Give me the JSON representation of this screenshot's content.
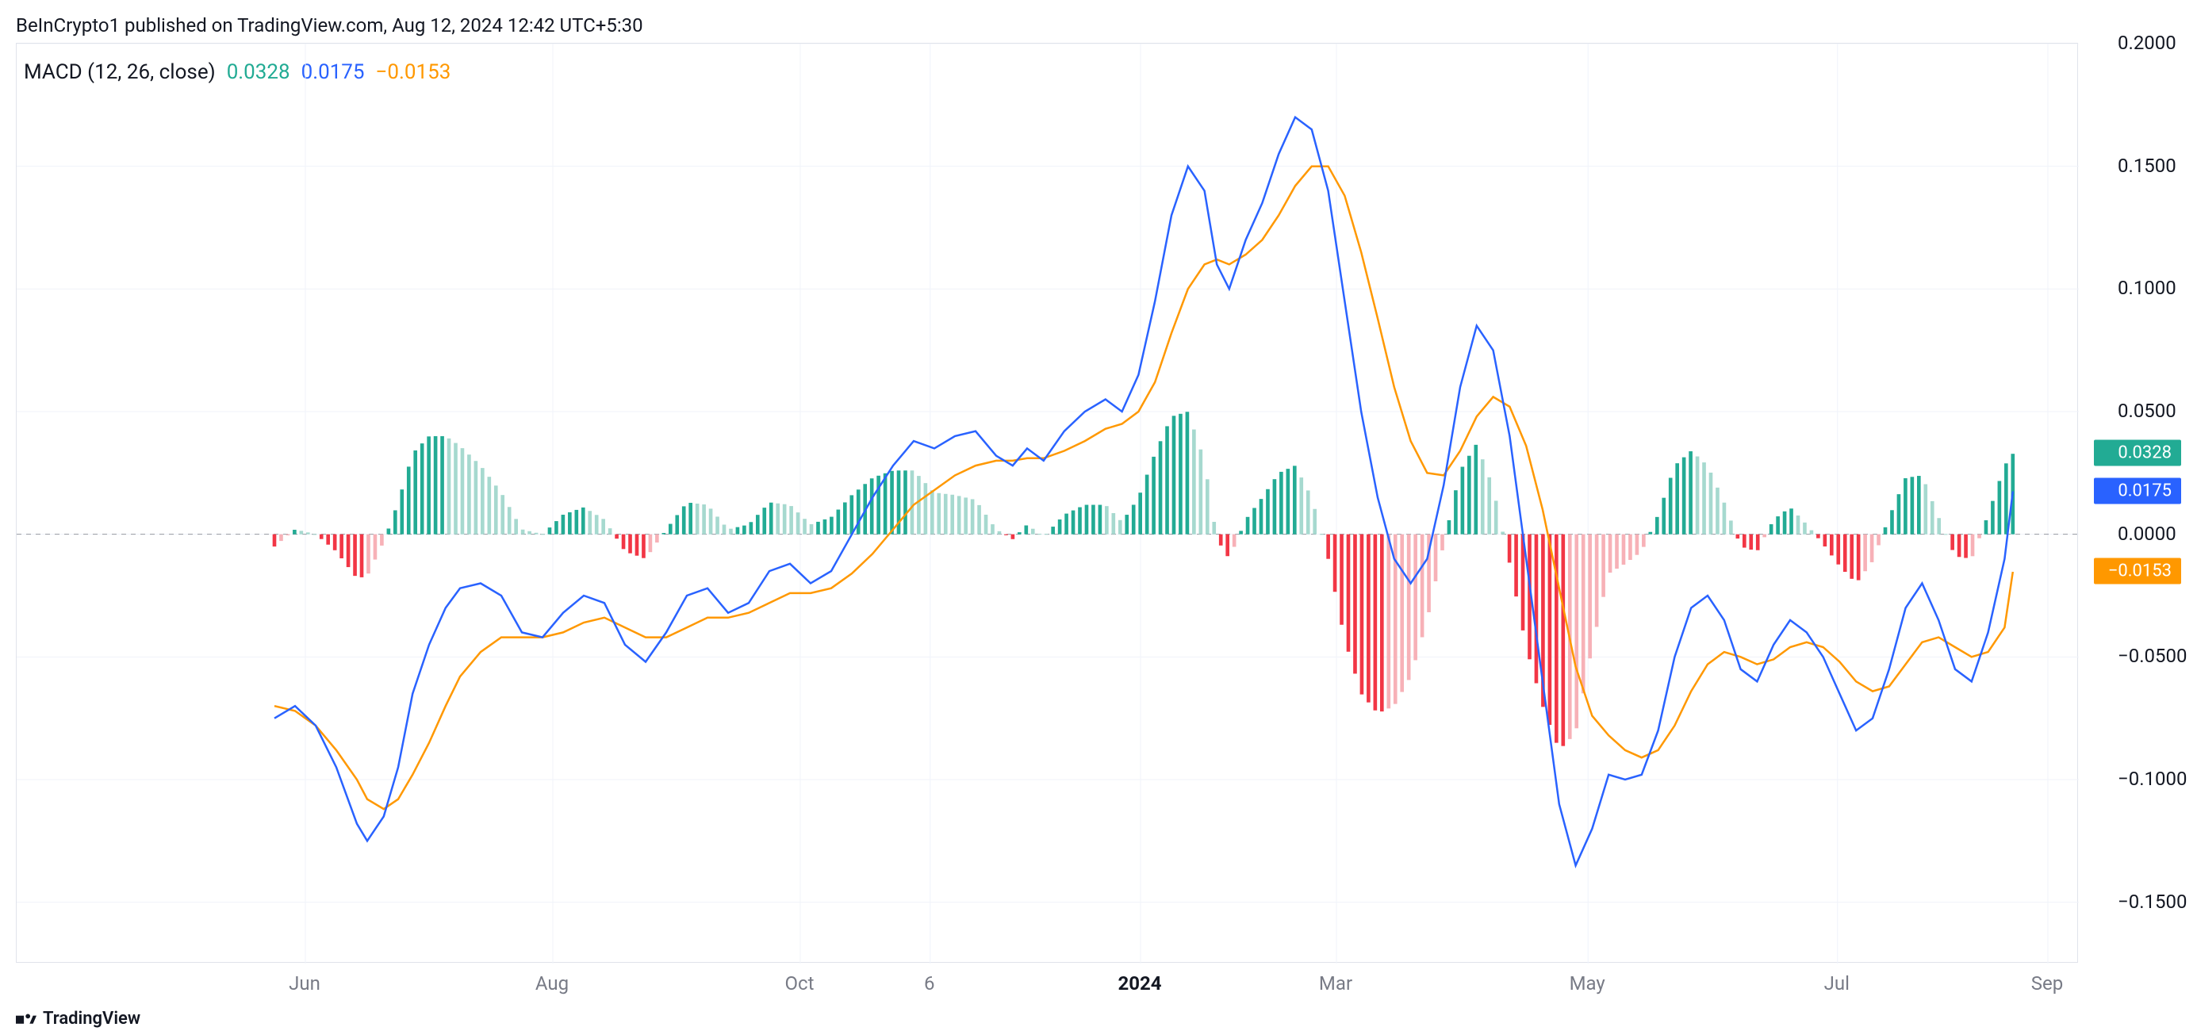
{
  "attribution": "BeInCrypto1 published on TradingView.com, Aug 12, 2024 12:42 UTC+5:30",
  "watermark": "TradingView",
  "legend": {
    "name": "MACD (12, 26, close)",
    "val_hist": "0.0328",
    "val_macd": "0.0175",
    "val_signal": "−0.0153"
  },
  "chart": {
    "type": "macd",
    "ylim": [
      -0.175,
      0.2
    ],
    "yticks": [
      -0.15,
      -0.1,
      -0.05,
      0.0,
      0.05,
      0.1,
      0.15,
      0.2
    ],
    "ytick_labels": [
      "−0.1500",
      "−0.1000",
      "−0.0500",
      "0.0000",
      "0.0500",
      "0.1000",
      "0.1500",
      "0.2000"
    ],
    "xtick_positions": [
      0.14,
      0.26,
      0.38,
      0.443,
      0.545,
      0.64,
      0.762,
      0.883,
      0.985
    ],
    "xtick_labels": [
      "Jun",
      "Aug",
      "Oct",
      "6",
      "2024",
      "Mar",
      "May",
      "Jul",
      "Sep"
    ],
    "xtick_bold_index": 4,
    "colors": {
      "macd_line": "#2962ff",
      "signal_line": "#ff9800",
      "hist_pos_strong": "#22ab94",
      "hist_pos_weak": "#a6d9cf",
      "hist_neg_strong": "#f23645",
      "hist_neg_weak": "#f7b1b7",
      "grid": "#f0f3fa",
      "zero": "#9598a1",
      "bg": "#ffffff",
      "text": "#131722"
    },
    "badges": [
      {
        "value": "0.0328",
        "y": 0.0328,
        "bg": "#22ab94"
      },
      {
        "value": "0.0175",
        "y": 0.0175,
        "bg": "#2962ff"
      },
      {
        "value": "−0.0153",
        "y": -0.0153,
        "bg": "#ff9800"
      }
    ],
    "macd_points": [
      {
        "x": 0.125,
        "y": -0.075
      },
      {
        "x": 0.135,
        "y": -0.07
      },
      {
        "x": 0.145,
        "y": -0.078
      },
      {
        "x": 0.155,
        "y": -0.095
      },
      {
        "x": 0.165,
        "y": -0.118
      },
      {
        "x": 0.17,
        "y": -0.125
      },
      {
        "x": 0.178,
        "y": -0.115
      },
      {
        "x": 0.185,
        "y": -0.095
      },
      {
        "x": 0.192,
        "y": -0.065
      },
      {
        "x": 0.2,
        "y": -0.045
      },
      {
        "x": 0.208,
        "y": -0.03
      },
      {
        "x": 0.215,
        "y": -0.022
      },
      {
        "x": 0.225,
        "y": -0.02
      },
      {
        "x": 0.235,
        "y": -0.025
      },
      {
        "x": 0.245,
        "y": -0.04
      },
      {
        "x": 0.255,
        "y": -0.042
      },
      {
        "x": 0.265,
        "y": -0.032
      },
      {
        "x": 0.275,
        "y": -0.025
      },
      {
        "x": 0.285,
        "y": -0.028
      },
      {
        "x": 0.295,
        "y": -0.045
      },
      {
        "x": 0.305,
        "y": -0.052
      },
      {
        "x": 0.315,
        "y": -0.04
      },
      {
        "x": 0.325,
        "y": -0.025
      },
      {
        "x": 0.335,
        "y": -0.022
      },
      {
        "x": 0.345,
        "y": -0.032
      },
      {
        "x": 0.355,
        "y": -0.028
      },
      {
        "x": 0.365,
        "y": -0.015
      },
      {
        "x": 0.375,
        "y": -0.012
      },
      {
        "x": 0.385,
        "y": -0.02
      },
      {
        "x": 0.395,
        "y": -0.015
      },
      {
        "x": 0.405,
        "y": 0.0
      },
      {
        "x": 0.415,
        "y": 0.015
      },
      {
        "x": 0.425,
        "y": 0.028
      },
      {
        "x": 0.435,
        "y": 0.038
      },
      {
        "x": 0.445,
        "y": 0.035
      },
      {
        "x": 0.455,
        "y": 0.04
      },
      {
        "x": 0.465,
        "y": 0.042
      },
      {
        "x": 0.475,
        "y": 0.032
      },
      {
        "x": 0.483,
        "y": 0.028
      },
      {
        "x": 0.49,
        "y": 0.035
      },
      {
        "x": 0.498,
        "y": 0.03
      },
      {
        "x": 0.508,
        "y": 0.042
      },
      {
        "x": 0.518,
        "y": 0.05
      },
      {
        "x": 0.528,
        "y": 0.055
      },
      {
        "x": 0.536,
        "y": 0.05
      },
      {
        "x": 0.544,
        "y": 0.065
      },
      {
        "x": 0.552,
        "y": 0.095
      },
      {
        "x": 0.56,
        "y": 0.13
      },
      {
        "x": 0.568,
        "y": 0.15
      },
      {
        "x": 0.576,
        "y": 0.14
      },
      {
        "x": 0.582,
        "y": 0.11
      },
      {
        "x": 0.588,
        "y": 0.1
      },
      {
        "x": 0.596,
        "y": 0.12
      },
      {
        "x": 0.604,
        "y": 0.135
      },
      {
        "x": 0.612,
        "y": 0.155
      },
      {
        "x": 0.62,
        "y": 0.17
      },
      {
        "x": 0.628,
        "y": 0.165
      },
      {
        "x": 0.636,
        "y": 0.14
      },
      {
        "x": 0.644,
        "y": 0.095
      },
      {
        "x": 0.652,
        "y": 0.05
      },
      {
        "x": 0.66,
        "y": 0.015
      },
      {
        "x": 0.668,
        "y": -0.01
      },
      {
        "x": 0.676,
        "y": -0.02
      },
      {
        "x": 0.684,
        "y": -0.01
      },
      {
        "x": 0.692,
        "y": 0.02
      },
      {
        "x": 0.7,
        "y": 0.06
      },
      {
        "x": 0.708,
        "y": 0.085
      },
      {
        "x": 0.716,
        "y": 0.075
      },
      {
        "x": 0.724,
        "y": 0.04
      },
      {
        "x": 0.732,
        "y": -0.01
      },
      {
        "x": 0.74,
        "y": -0.06
      },
      {
        "x": 0.748,
        "y": -0.11
      },
      {
        "x": 0.756,
        "y": -0.135
      },
      {
        "x": 0.764,
        "y": -0.12
      },
      {
        "x": 0.772,
        "y": -0.098
      },
      {
        "x": 0.78,
        "y": -0.1
      },
      {
        "x": 0.788,
        "y": -0.098
      },
      {
        "x": 0.796,
        "y": -0.08
      },
      {
        "x": 0.804,
        "y": -0.05
      },
      {
        "x": 0.812,
        "y": -0.03
      },
      {
        "x": 0.82,
        "y": -0.025
      },
      {
        "x": 0.828,
        "y": -0.035
      },
      {
        "x": 0.836,
        "y": -0.055
      },
      {
        "x": 0.844,
        "y": -0.06
      },
      {
        "x": 0.852,
        "y": -0.045
      },
      {
        "x": 0.86,
        "y": -0.035
      },
      {
        "x": 0.868,
        "y": -0.04
      },
      {
        "x": 0.876,
        "y": -0.05
      },
      {
        "x": 0.884,
        "y": -0.065
      },
      {
        "x": 0.892,
        "y": -0.08
      },
      {
        "x": 0.9,
        "y": -0.075
      },
      {
        "x": 0.908,
        "y": -0.055
      },
      {
        "x": 0.916,
        "y": -0.03
      },
      {
        "x": 0.924,
        "y": -0.02
      },
      {
        "x": 0.932,
        "y": -0.035
      },
      {
        "x": 0.94,
        "y": -0.055
      },
      {
        "x": 0.948,
        "y": -0.06
      },
      {
        "x": 0.956,
        "y": -0.04
      },
      {
        "x": 0.964,
        "y": -0.01
      },
      {
        "x": 0.968,
        "y": 0.0175
      }
    ],
    "signal_points": [
      {
        "x": 0.125,
        "y": -0.07
      },
      {
        "x": 0.135,
        "y": -0.072
      },
      {
        "x": 0.145,
        "y": -0.078
      },
      {
        "x": 0.155,
        "y": -0.088
      },
      {
        "x": 0.165,
        "y": -0.1
      },
      {
        "x": 0.17,
        "y": -0.108
      },
      {
        "x": 0.178,
        "y": -0.112
      },
      {
        "x": 0.185,
        "y": -0.108
      },
      {
        "x": 0.192,
        "y": -0.098
      },
      {
        "x": 0.2,
        "y": -0.085
      },
      {
        "x": 0.208,
        "y": -0.07
      },
      {
        "x": 0.215,
        "y": -0.058
      },
      {
        "x": 0.225,
        "y": -0.048
      },
      {
        "x": 0.235,
        "y": -0.042
      },
      {
        "x": 0.245,
        "y": -0.042
      },
      {
        "x": 0.255,
        "y": -0.042
      },
      {
        "x": 0.265,
        "y": -0.04
      },
      {
        "x": 0.275,
        "y": -0.036
      },
      {
        "x": 0.285,
        "y": -0.034
      },
      {
        "x": 0.295,
        "y": -0.038
      },
      {
        "x": 0.305,
        "y": -0.042
      },
      {
        "x": 0.315,
        "y": -0.042
      },
      {
        "x": 0.325,
        "y": -0.038
      },
      {
        "x": 0.335,
        "y": -0.034
      },
      {
        "x": 0.345,
        "y": -0.034
      },
      {
        "x": 0.355,
        "y": -0.032
      },
      {
        "x": 0.365,
        "y": -0.028
      },
      {
        "x": 0.375,
        "y": -0.024
      },
      {
        "x": 0.385,
        "y": -0.024
      },
      {
        "x": 0.395,
        "y": -0.022
      },
      {
        "x": 0.405,
        "y": -0.016
      },
      {
        "x": 0.415,
        "y": -0.008
      },
      {
        "x": 0.425,
        "y": 0.002
      },
      {
        "x": 0.435,
        "y": 0.012
      },
      {
        "x": 0.445,
        "y": 0.018
      },
      {
        "x": 0.455,
        "y": 0.024
      },
      {
        "x": 0.465,
        "y": 0.028
      },
      {
        "x": 0.475,
        "y": 0.03
      },
      {
        "x": 0.483,
        "y": 0.03
      },
      {
        "x": 0.49,
        "y": 0.031
      },
      {
        "x": 0.498,
        "y": 0.031
      },
      {
        "x": 0.508,
        "y": 0.034
      },
      {
        "x": 0.518,
        "y": 0.038
      },
      {
        "x": 0.528,
        "y": 0.043
      },
      {
        "x": 0.536,
        "y": 0.045
      },
      {
        "x": 0.544,
        "y": 0.05
      },
      {
        "x": 0.552,
        "y": 0.062
      },
      {
        "x": 0.56,
        "y": 0.082
      },
      {
        "x": 0.568,
        "y": 0.1
      },
      {
        "x": 0.576,
        "y": 0.11
      },
      {
        "x": 0.582,
        "y": 0.112
      },
      {
        "x": 0.588,
        "y": 0.11
      },
      {
        "x": 0.596,
        "y": 0.114
      },
      {
        "x": 0.604,
        "y": 0.12
      },
      {
        "x": 0.612,
        "y": 0.13
      },
      {
        "x": 0.62,
        "y": 0.142
      },
      {
        "x": 0.628,
        "y": 0.15
      },
      {
        "x": 0.636,
        "y": 0.15
      },
      {
        "x": 0.644,
        "y": 0.138
      },
      {
        "x": 0.652,
        "y": 0.115
      },
      {
        "x": 0.66,
        "y": 0.088
      },
      {
        "x": 0.668,
        "y": 0.06
      },
      {
        "x": 0.676,
        "y": 0.038
      },
      {
        "x": 0.684,
        "y": 0.025
      },
      {
        "x": 0.692,
        "y": 0.024
      },
      {
        "x": 0.7,
        "y": 0.034
      },
      {
        "x": 0.708,
        "y": 0.048
      },
      {
        "x": 0.716,
        "y": 0.056
      },
      {
        "x": 0.724,
        "y": 0.052
      },
      {
        "x": 0.732,
        "y": 0.036
      },
      {
        "x": 0.74,
        "y": 0.01
      },
      {
        "x": 0.748,
        "y": -0.022
      },
      {
        "x": 0.756,
        "y": -0.054
      },
      {
        "x": 0.764,
        "y": -0.074
      },
      {
        "x": 0.772,
        "y": -0.082
      },
      {
        "x": 0.78,
        "y": -0.088
      },
      {
        "x": 0.788,
        "y": -0.091
      },
      {
        "x": 0.796,
        "y": -0.088
      },
      {
        "x": 0.804,
        "y": -0.078
      },
      {
        "x": 0.812,
        "y": -0.064
      },
      {
        "x": 0.82,
        "y": -0.053
      },
      {
        "x": 0.828,
        "y": -0.048
      },
      {
        "x": 0.836,
        "y": -0.05
      },
      {
        "x": 0.844,
        "y": -0.053
      },
      {
        "x": 0.852,
        "y": -0.051
      },
      {
        "x": 0.86,
        "y": -0.046
      },
      {
        "x": 0.868,
        "y": -0.044
      },
      {
        "x": 0.876,
        "y": -0.046
      },
      {
        "x": 0.884,
        "y": -0.052
      },
      {
        "x": 0.892,
        "y": -0.06
      },
      {
        "x": 0.9,
        "y": -0.064
      },
      {
        "x": 0.908,
        "y": -0.062
      },
      {
        "x": 0.916,
        "y": -0.053
      },
      {
        "x": 0.924,
        "y": -0.044
      },
      {
        "x": 0.932,
        "y": -0.042
      },
      {
        "x": 0.94,
        "y": -0.046
      },
      {
        "x": 0.948,
        "y": -0.05
      },
      {
        "x": 0.956,
        "y": -0.048
      },
      {
        "x": 0.964,
        "y": -0.038
      },
      {
        "x": 0.968,
        "y": -0.0153
      }
    ]
  }
}
